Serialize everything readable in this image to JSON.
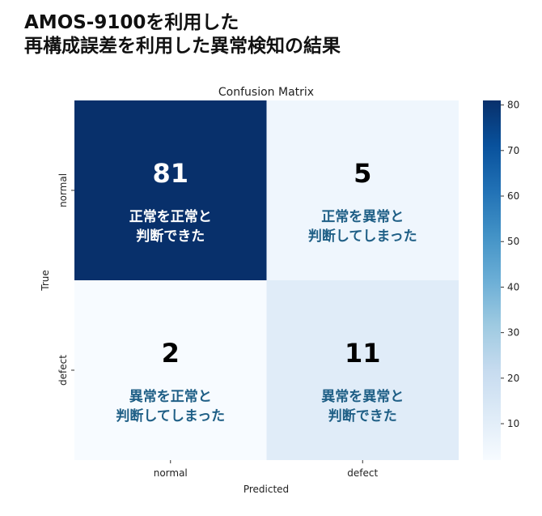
{
  "page_title": {
    "line1": "AMOS-9100を利用した",
    "line2": "再構成誤差を利用した異常検知の結果"
  },
  "chart_data": {
    "type": "heatmap",
    "title": "Confusion Matrix",
    "xlabel": "Predicted",
    "ylabel": "True",
    "x_categories": [
      "normal",
      "defect"
    ],
    "y_categories": [
      "normal",
      "defect"
    ],
    "values": [
      [
        81,
        5
      ],
      [
        2,
        11
      ]
    ],
    "annotations": [
      [
        "正常を正常と\n判断できた",
        "正常を異常と\n判断してしまった"
      ],
      [
        "異常を正常と\n判断してしまった",
        "異常を異常と\n判断できた"
      ]
    ],
    "colormap": "Blues",
    "colorbar": {
      "range": [
        2,
        81
      ],
      "ticks": [
        10,
        20,
        30,
        40,
        50,
        60,
        70,
        80
      ]
    },
    "annotation_color_light": "#ffffff",
    "annotation_color_dark": "#1f5f86"
  }
}
